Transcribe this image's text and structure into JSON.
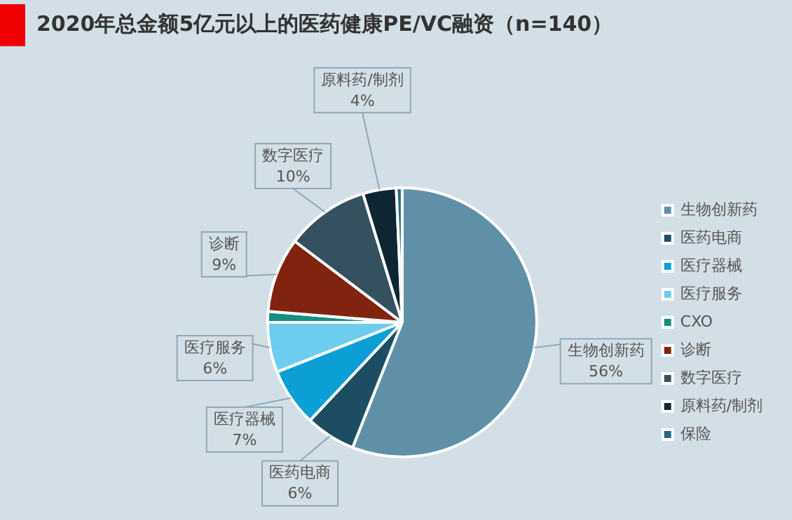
{
  "chart_data": {
    "type": "pie",
    "title": "2020年总金额5亿元以上的医药健康PE/VC融资（n=140）",
    "categories": [
      "生物创新药",
      "医药电商",
      "医疗器械",
      "医疗服务",
      "CXO",
      "诊断",
      "数字医疗",
      "原料药/制剂",
      "保险"
    ],
    "values": [
      56,
      6,
      7,
      6,
      1.3,
      9,
      10,
      4,
      0.7
    ],
    "value_labels": [
      "56%",
      "6%",
      "7%",
      "6%",
      null,
      "9%",
      "10%",
      "4%",
      null
    ],
    "colors": [
      "#5f90a8",
      "#1d4d63",
      "#0b9fd6",
      "#6ccdef",
      "#148f80",
      "#80230f",
      "#35515f",
      "#0e2633",
      "#2a6884"
    ],
    "legend": "right"
  }
}
